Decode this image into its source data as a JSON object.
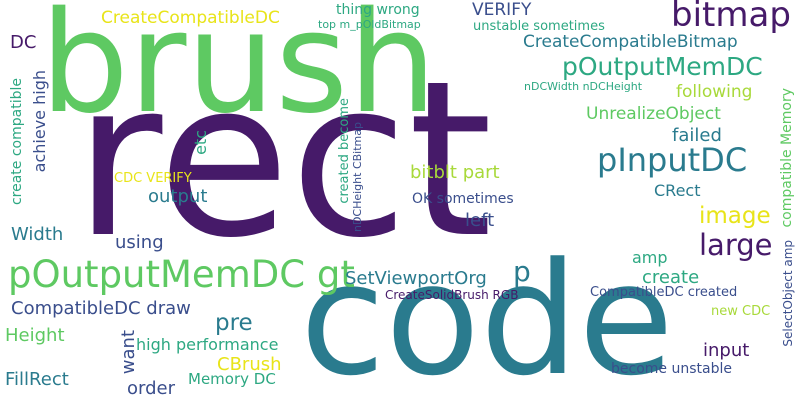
{
  "palette": {
    "dark_purple": "#461a69",
    "teal": "#2a7b8e",
    "blue": "#3a4e8c",
    "green": "#5ec962",
    "lime": "#a8d93a",
    "yellow": "#e8e419",
    "sea_green": "#2da882",
    "light_teal": "#22a385"
  },
  "words": {
    "rect": "rect",
    "brush": "brush",
    "code": "code",
    "bitmap": "bitmap",
    "create_compatible_dc": "CreateCompatibleDC",
    "thing_wrong": "thing wrong",
    "top_m_p_old_bitmap": "top m_pOldBitmap",
    "verify": "VERIFY",
    "unstable_sometimes": "unstable sometimes",
    "dc": "DC",
    "create_compatible_bitmap": "CreateCompatibleBitmap",
    "p_output_mem_dc": "pOutputMemDC",
    "ndc_width_ndc_height": "nDCWidth nDCHeight",
    "following": "following",
    "unrealize_object": "UnrealizeObject",
    "failed": "failed",
    "achieve_high": "achieve high",
    "create_compatible": "create compatible",
    "etc": "etc",
    "p_input_dc": "pInputDC",
    "cdc_verify": "CDC VERIFY",
    "bitblt_part": "bitblt part",
    "crect": "CRect",
    "output": "output",
    "ok_sometimes": "OK sometimes",
    "image": "image",
    "width": "Width",
    "left": "left",
    "using": "using",
    "large": "large",
    "p_output_mem_dc_gt": "pOutputMemDC gt",
    "p": "p",
    "amp": "amp",
    "set_viewport_org": "SetViewportOrg",
    "create": "create",
    "compatible_dc_draw": "CompatibleDC draw",
    "create_solid_brush_rgb": "CreateSolidBrush RGB",
    "compatible_dc_created": "CompatibleDC created",
    "pre": "pre",
    "height": "Height",
    "want": "want",
    "new_cdc": "new CDC",
    "high_performance": "high performance",
    "input": "input",
    "cbrush": "CBrush",
    "fill_rect": "FillRect",
    "order": "order",
    "memory_dc": "Memory DC",
    "become_unstable": "become unstable",
    "created_become": "created become",
    "ndc_height_cbitmap": "nDCHeight CBitmap",
    "compatible_memory": "compatible Memory",
    "select_object_amp": "SelectObject amp"
  }
}
